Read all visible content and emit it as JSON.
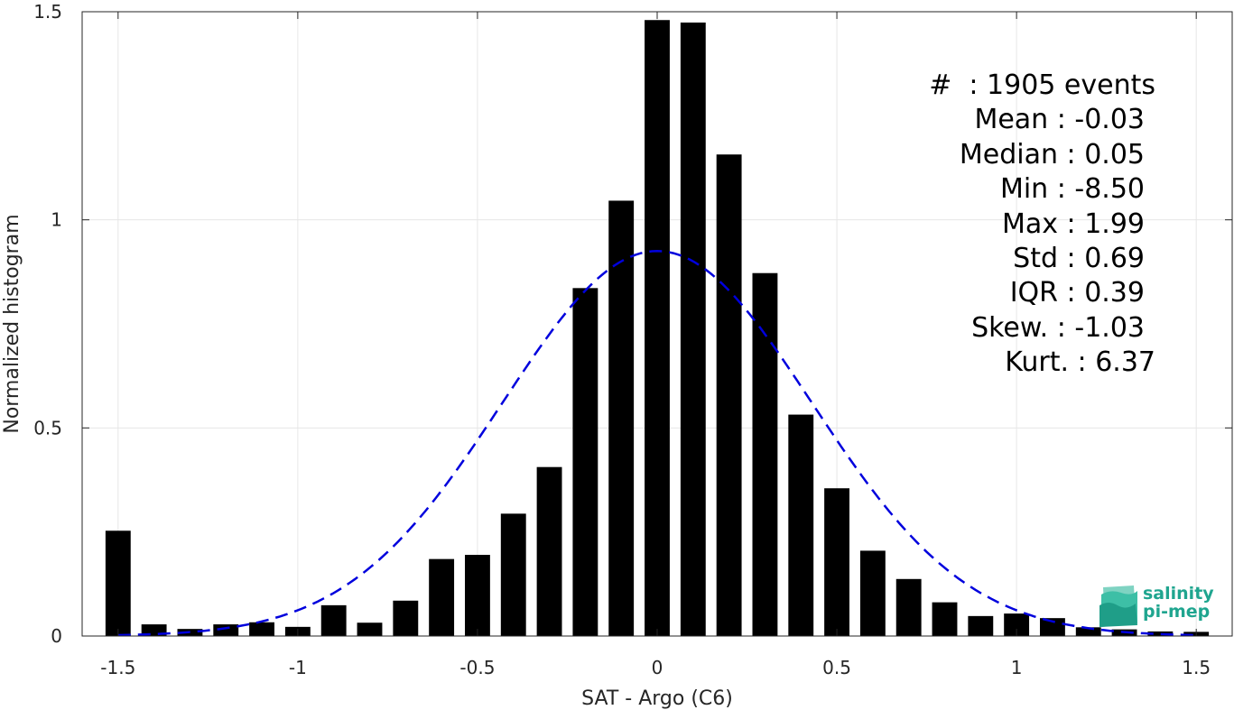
{
  "chart_data": {
    "type": "bar",
    "xlabel": "SAT - Argo (C6)",
    "ylabel": "Normalized histogram",
    "xlim": [
      -1.6,
      1.6
    ],
    "ylim": [
      0,
      1.5
    ],
    "x_ticks": [
      "-1.5",
      "-1",
      "-0.5",
      "0",
      "0.5",
      "1",
      "1.5"
    ],
    "x_tick_values": [
      -1.5,
      -1,
      -0.5,
      0,
      0.5,
      1,
      1.5
    ],
    "y_ticks": [
      "0",
      "0.5",
      "1",
      "1.5"
    ],
    "y_tick_values": [
      0,
      0.5,
      1,
      1.5
    ],
    "grid": true,
    "bar_width": 0.07,
    "x": [
      -1.5,
      -1.4,
      -1.3,
      -1.2,
      -1.1,
      -1.0,
      -0.9,
      -0.8,
      -0.7,
      -0.6,
      -0.5,
      -0.4,
      -0.3,
      -0.2,
      -0.1,
      0.0,
      0.1,
      0.2,
      0.3,
      0.4,
      0.5,
      0.6,
      0.7,
      0.8,
      0.9,
      1.0,
      1.1,
      1.2,
      1.3,
      1.4,
      1.5
    ],
    "values": [
      0.253,
      0.028,
      0.017,
      0.028,
      0.033,
      0.022,
      0.074,
      0.032,
      0.085,
      0.185,
      0.195,
      0.294,
      0.406,
      0.836,
      1.046,
      1.48,
      1.474,
      1.157,
      0.872,
      0.532,
      0.355,
      0.205,
      0.137,
      0.081,
      0.048,
      0.054,
      0.043,
      0.021,
      0.016,
      0.011,
      0.01
    ],
    "bar_color": "#000000",
    "fit_curve": {
      "style": "dashed",
      "color": "#0000dd",
      "mean": 0.0,
      "std": 0.43,
      "peak": 0.925
    },
    "stats": [
      "#  : 1905 events",
      "Mean : -0.03",
      "Median : 0.05",
      "Min : -8.50",
      "Max : 1.99",
      "Std : 0.69",
      "IQR : 0.39",
      "Skew. : -1.03",
      "Kurt. : 6.37"
    ]
  },
  "logo": {
    "line1": "salinity",
    "line2": "pi-mep",
    "color": "#1fa58f"
  }
}
